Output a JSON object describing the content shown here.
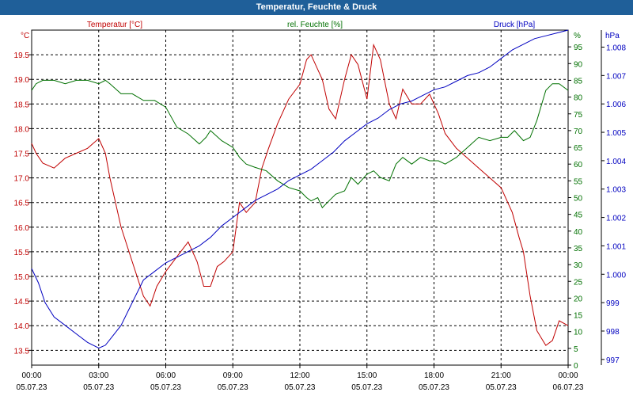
{
  "chart_data": {
    "type": "line",
    "title": "Temperatur, Feuchte & Druck",
    "x_ticks": [
      {
        "time": "00:00",
        "date": "05.07.23"
      },
      {
        "time": "03:00",
        "date": "05.07.23"
      },
      {
        "time": "06:00",
        "date": "05.07.23"
      },
      {
        "time": "09:00",
        "date": "05.07.23"
      },
      {
        "time": "12:00",
        "date": "05.07.23"
      },
      {
        "time": "15:00",
        "date": "05.07.23"
      },
      {
        "time": "18:00",
        "date": "05.07.23"
      },
      {
        "time": "21:00",
        "date": "05.07.23"
      },
      {
        "time": "00:00",
        "date": "06.07.23"
      }
    ],
    "x_range_hours": [
      0,
      24
    ],
    "axes": {
      "temperature": {
        "label": "Temperatur [°C]",
        "unit": "°C",
        "range": [
          13.2,
          20.0
        ],
        "ticks": [
          13.5,
          14.0,
          14.5,
          15.0,
          15.5,
          16.0,
          16.5,
          17.0,
          17.5,
          18.0,
          18.5,
          19.0,
          19.5
        ],
        "color": "#c00000"
      },
      "humidity": {
        "label": "rel. Feuchte [%]",
        "unit": "%",
        "range": [
          0,
          100
        ],
        "ticks": [
          0,
          5,
          10,
          15,
          20,
          25,
          30,
          35,
          40,
          45,
          50,
          55,
          60,
          65,
          70,
          75,
          80,
          85,
          90,
          95
        ],
        "color": "#007000"
      },
      "pressure": {
        "label": "Druck [hPa]",
        "unit": "hPa",
        "range": [
          996.8,
          1008.6
        ],
        "ticks": [
          997,
          998,
          999,
          1000.0,
          1001,
          1002,
          1003,
          1004,
          1005,
          1006,
          1007,
          1008
        ],
        "tick_labels": [
          "997",
          "998",
          "999",
          "1.000",
          "1.001",
          "1.002",
          "1.003",
          "1.004",
          "1.005",
          "1.006",
          "1.007",
          "1.008"
        ],
        "color": "#0000c0"
      }
    },
    "series": [
      {
        "name": "Temperatur [°C]",
        "axis": "temperature",
        "color": "#c00000",
        "x": [
          0,
          0.2,
          0.5,
          1.0,
          1.5,
          2.0,
          2.5,
          3.0,
          3.3,
          3.5,
          4.0,
          4.5,
          5.0,
          5.3,
          5.6,
          6.0,
          6.5,
          7.0,
          7.4,
          7.7,
          8.0,
          8.3,
          8.6,
          9.0,
          9.3,
          9.6,
          10.0,
          10.3,
          10.6,
          11.0,
          11.5,
          12.0,
          12.3,
          12.5,
          12.8,
          13.0,
          13.3,
          13.6,
          14.0,
          14.3,
          14.6,
          15.0,
          15.3,
          15.6,
          16.0,
          16.3,
          16.6,
          17.0,
          17.4,
          17.8,
          18.2,
          18.5,
          19.0,
          19.5,
          20.0,
          20.5,
          21.0,
          21.5,
          21.8,
          22.0,
          22.3,
          22.6,
          23.0,
          23.3,
          23.6,
          24.0
        ],
        "y": [
          17.7,
          17.5,
          17.3,
          17.2,
          17.4,
          17.5,
          17.6,
          17.8,
          17.5,
          17.0,
          16.0,
          15.3,
          14.6,
          14.4,
          14.8,
          15.1,
          15.4,
          15.7,
          15.3,
          14.8,
          14.8,
          15.2,
          15.3,
          15.5,
          16.5,
          16.3,
          16.5,
          17.2,
          17.6,
          18.1,
          18.6,
          18.9,
          19.4,
          19.5,
          19.2,
          19.0,
          18.4,
          18.2,
          19.0,
          19.5,
          19.3,
          18.6,
          19.7,
          19.4,
          18.5,
          18.2,
          18.8,
          18.5,
          18.5,
          18.7,
          18.3,
          17.9,
          17.6,
          17.4,
          17.2,
          17.0,
          16.8,
          16.3,
          15.8,
          15.5,
          14.6,
          13.9,
          13.6,
          13.7,
          14.1,
          14.0
        ]
      },
      {
        "name": "rel. Feuchte [%]",
        "axis": "humidity",
        "color": "#007000",
        "x": [
          0,
          0.2,
          0.5,
          1.0,
          1.5,
          2.0,
          2.5,
          3.0,
          3.3,
          3.5,
          4.0,
          4.5,
          5.0,
          5.5,
          6.0,
          6.5,
          7.0,
          7.5,
          7.8,
          8.0,
          8.5,
          9.0,
          9.3,
          9.6,
          10.0,
          10.5,
          11.0,
          11.5,
          12.0,
          12.3,
          12.5,
          12.8,
          13.0,
          13.3,
          13.6,
          14.0,
          14.3,
          14.6,
          15.0,
          15.3,
          15.6,
          16.0,
          16.3,
          16.6,
          17.0,
          17.4,
          17.8,
          18.2,
          18.5,
          19.0,
          19.5,
          20.0,
          20.5,
          21.0,
          21.3,
          21.6,
          22.0,
          22.3,
          22.6,
          23.0,
          23.3,
          23.6,
          24.0
        ],
        "y": [
          82,
          84,
          85,
          85,
          84,
          85,
          85,
          84,
          85,
          84,
          81,
          81,
          79,
          79,
          77,
          71,
          69,
          66,
          68,
          70,
          67,
          65,
          62,
          60,
          59,
          58,
          55,
          53,
          52,
          50,
          49,
          50,
          47,
          49,
          51,
          52,
          56,
          54,
          57,
          58,
          56,
          55,
          60,
          62,
          60,
          62,
          61,
          61,
          60,
          62,
          65,
          68,
          67,
          68,
          68,
          70,
          67,
          68,
          73,
          82,
          84,
          84,
          82
        ]
      },
      {
        "name": "Druck [hPa]",
        "axis": "pressure",
        "color": "#0000c0",
        "x": [
          0,
          0.3,
          0.6,
          1.0,
          1.5,
          2.0,
          2.5,
          3.0,
          3.3,
          3.6,
          4.0,
          4.5,
          5.0,
          5.5,
          6.0,
          6.5,
          7.0,
          7.5,
          8.0,
          8.5,
          9.0,
          9.5,
          10.0,
          10.5,
          11.0,
          11.5,
          12.0,
          12.5,
          13.0,
          13.5,
          14.0,
          14.5,
          15.0,
          15.5,
          16.0,
          16.5,
          17.0,
          17.5,
          18.0,
          18.5,
          19.0,
          19.5,
          20.0,
          20.5,
          21.0,
          21.5,
          22.0,
          22.5,
          23.0,
          23.5,
          24.0
        ],
        "y": [
          1000.2,
          999.7,
          999.0,
          998.5,
          998.2,
          997.9,
          997.6,
          997.4,
          997.5,
          997.8,
          998.2,
          999.0,
          999.8,
          1000.1,
          1000.4,
          1000.6,
          1000.8,
          1001.0,
          1001.3,
          1001.7,
          1002.0,
          1002.3,
          1002.6,
          1002.8,
          1003.0,
          1003.3,
          1003.5,
          1003.7,
          1004.0,
          1004.3,
          1004.7,
          1005.0,
          1005.3,
          1005.5,
          1005.8,
          1006.0,
          1006.1,
          1006.3,
          1006.5,
          1006.6,
          1006.8,
          1007.0,
          1007.1,
          1007.3,
          1007.6,
          1007.9,
          1008.1,
          1008.3,
          1008.4,
          1008.5,
          1008.6
        ]
      }
    ]
  }
}
